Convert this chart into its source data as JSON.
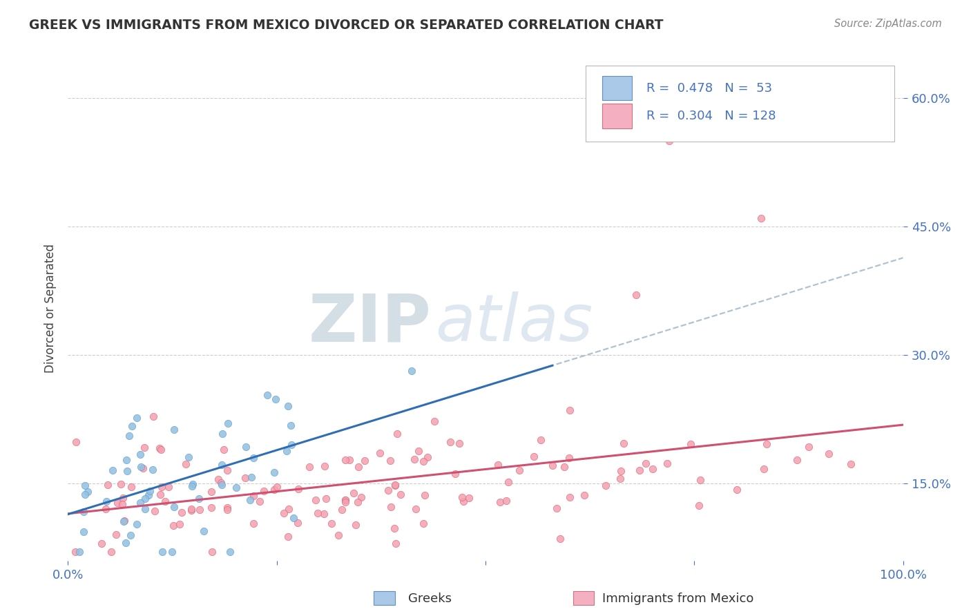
{
  "title": "GREEK VS IMMIGRANTS FROM MEXICO DIVORCED OR SEPARATED CORRELATION CHART",
  "source_text": "Source: ZipAtlas.com",
  "ylabel": "Divorced or Separated",
  "xlim": [
    0.0,
    1.0
  ],
  "ylim": [
    0.06,
    0.65
  ],
  "yticks": [
    0.15,
    0.3,
    0.45,
    0.6
  ],
  "ytick_labels": [
    "15.0%",
    "30.0%",
    "45.0%",
    "60.0%"
  ],
  "xticks": [
    0.0,
    0.25,
    0.5,
    0.75,
    1.0
  ],
  "xtick_labels": [
    "0.0%",
    "",
    "",
    "",
    "100.0%"
  ],
  "series1_color": "#92c0e0",
  "series1_edge": "#5b9bd5",
  "series2_color": "#f4a0b0",
  "series2_edge": "#e06070",
  "trend1_color": "#2f6eb5",
  "trend2_color": "#d05070",
  "dash_color": "#a0b8c8",
  "background_color": "#ffffff",
  "watermark_color": "#d0dce8",
  "watermark_text": "ZIPatlas",
  "title_color": "#333333",
  "axis_tick_color": "#4472c4",
  "legend_sq1_fill": "#aac8e8",
  "legend_sq1_edge": "#6090c0",
  "legend_sq2_fill": "#f4b0c0",
  "legend_sq2_edge": "#d07080",
  "legend_text_color": "#4472c4",
  "bottom_label_color": "#333333",
  "series1_R": 0.478,
  "series1_N": 53,
  "series2_R": 0.304,
  "series2_N": 128,
  "seed": 7
}
